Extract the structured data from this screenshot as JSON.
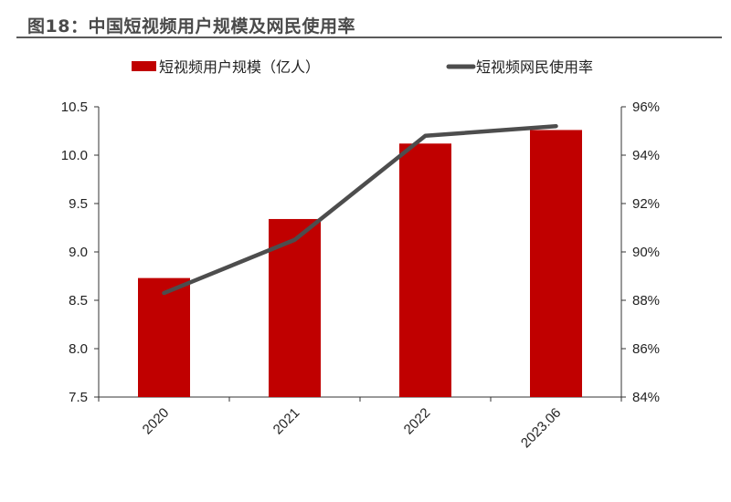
{
  "title": "图18：中国短视频用户规模及网民使用率",
  "chart_data": {
    "type": "bar+line",
    "categories": [
      "2020",
      "2021",
      "2022",
      "2023.06"
    ],
    "series": [
      {
        "name": "短视频用户规模（亿人）",
        "type": "bar",
        "axis": "left",
        "color": "#c00000",
        "values": [
          8.73,
          9.34,
          10.12,
          10.26
        ]
      },
      {
        "name": "短视频网民使用率",
        "type": "line",
        "axis": "right",
        "color": "#4d4d4d",
        "values": [
          88.3,
          90.5,
          94.8,
          95.2
        ]
      }
    ],
    "y_left": {
      "ylim": [
        7.5,
        10.5
      ],
      "ticks": [
        "7.5",
        "8.0",
        "8.5",
        "9.0",
        "9.5",
        "10.0",
        "10.5"
      ]
    },
    "y_right": {
      "ylim": [
        84,
        96
      ],
      "ticks": [
        "84%",
        "86%",
        "88%",
        "90%",
        "92%",
        "94%",
        "96%"
      ]
    },
    "grid": false,
    "legend": "top"
  }
}
